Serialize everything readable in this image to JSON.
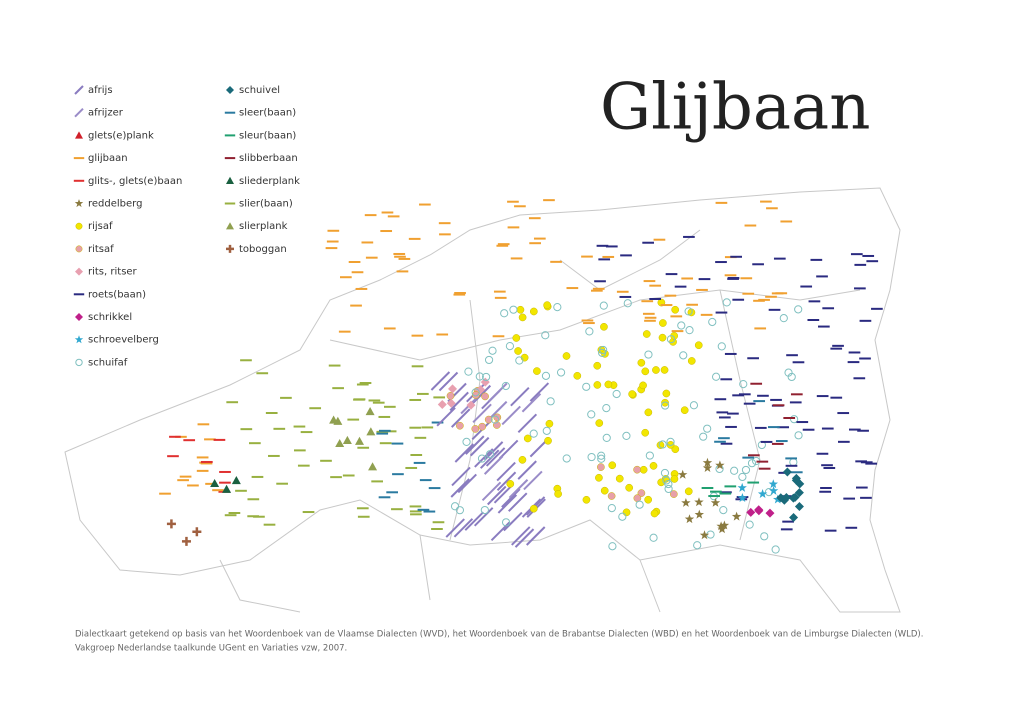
{
  "title": "Glijbaan",
  "legend": {
    "items": [
      {
        "label": "afrijs",
        "symbol": "slash",
        "color": "#8a7cc0"
      },
      {
        "label": "afrijzer",
        "symbol": "slash",
        "color": "#9a8cc8"
      },
      {
        "label": "glets(e)plank",
        "symbol": "triangle",
        "color": "#d0202a"
      },
      {
        "label": "glijbaan",
        "symbol": "line",
        "color": "#f0a030"
      },
      {
        "label": "glits-, glets(e)baan",
        "symbol": "line",
        "color": "#e03030"
      },
      {
        "label": "reddelberg",
        "symbol": "star",
        "color": "#8a7a40"
      },
      {
        "label": "rijsaf",
        "symbol": "circle",
        "color": "#f2e600"
      },
      {
        "label": "ritsaf",
        "symbol": "circle",
        "color": "#e8a0a8"
      },
      {
        "label": "rits, ritser",
        "symbol": "diamond",
        "color": "#e8a0b0"
      },
      {
        "label": "roets(baan)",
        "symbol": "line",
        "color": "#2a2a80"
      },
      {
        "label": "schrikkel",
        "symbol": "diamond",
        "color": "#c0208a"
      },
      {
        "label": "schroevelberg",
        "symbol": "star",
        "color": "#30a8d0"
      },
      {
        "label": "schuifaf",
        "symbol": "ring",
        "color": "#80c0c0"
      },
      {
        "label": "schuivel",
        "symbol": "diamond",
        "color": "#1a6a7a"
      },
      {
        "label": "sleer(baan)",
        "symbol": "line",
        "color": "#2a7aa0"
      },
      {
        "label": "sleur(baan)",
        "symbol": "line",
        "color": "#20a070"
      },
      {
        "label": "slibberbaan",
        "symbol": "line",
        "color": "#902030"
      },
      {
        "label": "sliederplank",
        "symbol": "triangle",
        "color": "#1a6040"
      },
      {
        "label": "slier(baan)",
        "symbol": "line",
        "color": "#98b040"
      },
      {
        "label": "slierplank",
        "symbol": "triangle",
        "color": "#90a050"
      },
      {
        "label": "toboggan",
        "symbol": "cross",
        "color": "#a06040"
      }
    ]
  },
  "caption": {
    "lines": [
      "Dialectkaart getekend op basis van het Woordenboek van de Vlaamse Dialecten (WVD), het Woordenboek van de Brabantse Dialecten (WBD) en het Woordenboek van de Limburgse Dialecten (WLD).",
      "Vakgroep Nederlandse taalkunde UGent en Variaties vzw, 2007."
    ]
  }
}
